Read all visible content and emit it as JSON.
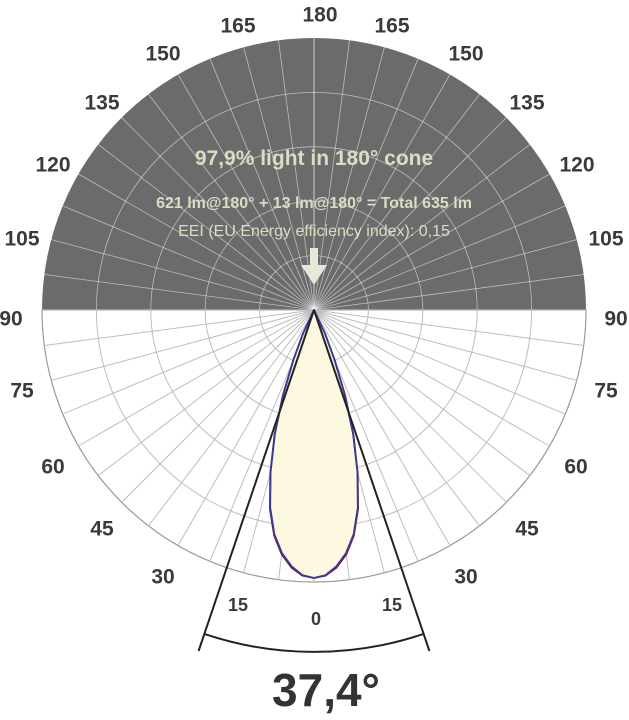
{
  "chart_data": {
    "type": "polar",
    "angle_labels_left": [
      "180",
      "165",
      "150",
      "135",
      "120",
      "105",
      "90",
      "75",
      "60",
      "45",
      "30",
      "15",
      "0"
    ],
    "angle_labels_right": [
      "165",
      "150",
      "135",
      "120",
      "105",
      "90",
      "75",
      "60",
      "45",
      "30",
      "15"
    ],
    "info": {
      "line1": "97,9% light in 180° cone",
      "line2": "621 lm@180° + 13 lm@180° = Total 635 lm",
      "line3": "EEI (EU Energy efficiency index): 0,15"
    },
    "beam_angle_label": "37,4°",
    "beam_angle_deg": 37.4,
    "series": [
      {
        "color": "#7a1a2a",
        "angles_deg": [
          0,
          2.5,
          5,
          7.5,
          10,
          12.5,
          15,
          17.5,
          20,
          22.5,
          25,
          30
        ],
        "relative_intensity": [
          1.0,
          0.992,
          0.965,
          0.92,
          0.855,
          0.76,
          0.63,
          0.49,
          0.34,
          0.2,
          0.1,
          0.0
        ]
      },
      {
        "color": "#3a3a9a",
        "angles_deg": [
          0,
          2.5,
          5,
          7.5,
          10,
          12.5,
          15,
          17.5,
          20,
          22.5,
          25,
          30
        ],
        "relative_intensity": [
          1.0,
          0.99,
          0.96,
          0.915,
          0.85,
          0.755,
          0.625,
          0.485,
          0.335,
          0.195,
          0.098,
          0.0
        ]
      }
    ],
    "colors": {
      "upper_half": "#6b6b6b",
      "fill": "#fcf9e0",
      "grid_light": "#bdbdbd",
      "grid_dark": "#ffffff"
    }
  }
}
